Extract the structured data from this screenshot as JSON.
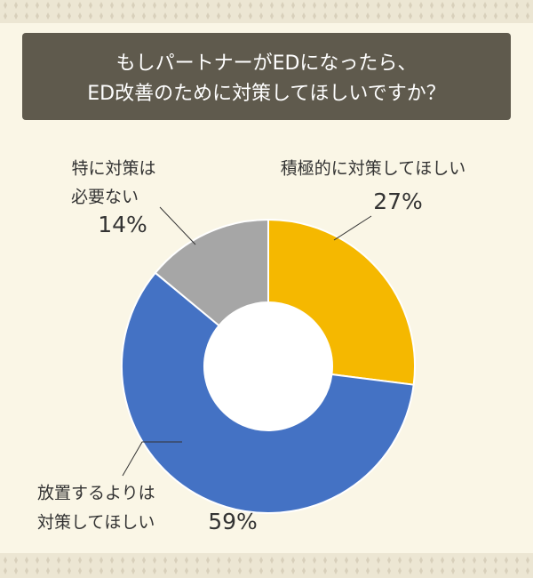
{
  "chart_data": {
    "type": "donut",
    "title": [
      "もしパートナーがEDになったら、",
      "ED改善のために対策してほしいですか？"
    ],
    "categories": [
      [
        "積極的に対策してほしい"
      ],
      [
        "放置するよりは",
        "対策してほしい"
      ],
      [
        "特に対策は",
        "必要ない"
      ]
    ],
    "values": [
      27,
      59,
      14
    ],
    "value_labels": [
      "27%",
      "59%",
      "14%"
    ],
    "colors": [
      "#f5b800",
      "#4472c4",
      "#a6a6a6"
    ]
  }
}
